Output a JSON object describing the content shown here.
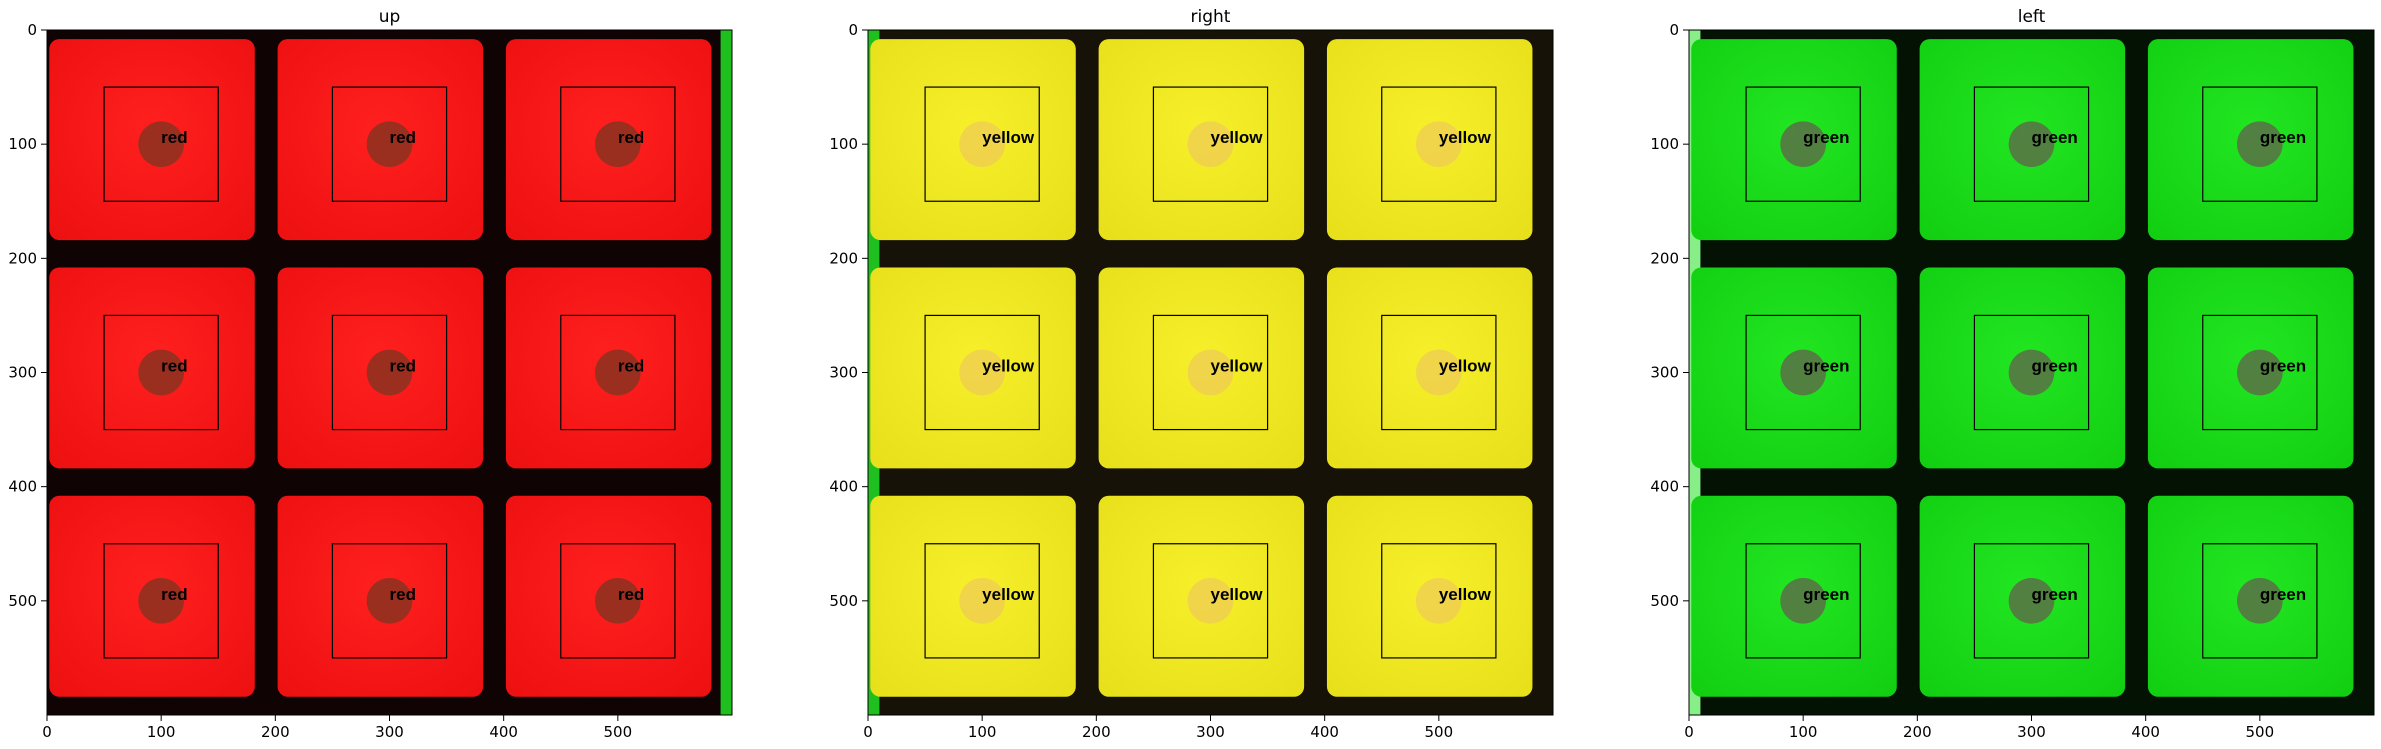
{
  "panels": [
    {
      "title": "up",
      "label": "red",
      "colors": {
        "face": "#ee1111",
        "face_light": "#ff1f1f",
        "marker": "#8a3320",
        "edge": "#0f0303",
        "accent": "#1fbf1f"
      },
      "cells": [
        "red",
        "red",
        "red",
        "red",
        "red",
        "red",
        "red",
        "red",
        "red"
      ]
    },
    {
      "title": "right",
      "label": "yellow",
      "colors": {
        "face": "#e7e01a",
        "face_light": "#f6ef2a",
        "marker": "#efcf50",
        "edge": "#161208",
        "accent": "#1fbf1f"
      },
      "cells": [
        "yellow",
        "yellow",
        "yellow",
        "yellow",
        "yellow",
        "yellow",
        "yellow",
        "yellow",
        "yellow"
      ]
    },
    {
      "title": "left",
      "label": "green",
      "colors": {
        "face": "#12cf12",
        "face_light": "#22e622",
        "marker": "#5a6e48",
        "edge": "#041204",
        "accent": "#88ee88"
      },
      "cells": [
        "green",
        "green",
        "green",
        "green",
        "green",
        "green",
        "green",
        "green",
        "green"
      ]
    }
  ],
  "x_ticks": [
    "0",
    "100",
    "200",
    "300",
    "400",
    "500"
  ],
  "y_ticks": [
    "0",
    "100",
    "200",
    "300",
    "400",
    "500"
  ],
  "axis_range": {
    "x": [
      0,
      600
    ],
    "y": [
      600,
      0
    ]
  }
}
